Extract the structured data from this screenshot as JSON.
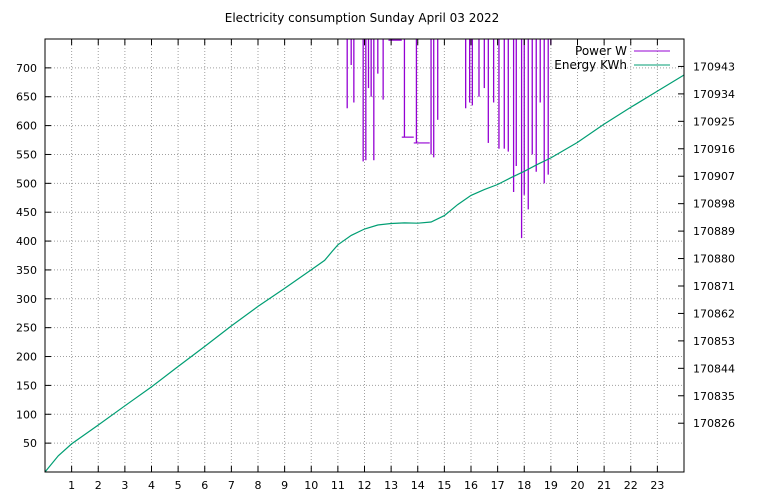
{
  "chart_data": {
    "type": "line",
    "title": "Electricity consumption Sunday April 03 2022",
    "x_ticks": [
      1,
      2,
      3,
      4,
      5,
      6,
      7,
      8,
      9,
      10,
      11,
      12,
      13,
      14,
      15,
      16,
      17,
      18,
      19,
      20,
      21,
      22,
      23
    ],
    "xlim": [
      0,
      24
    ],
    "y_left_ticks": [
      50,
      100,
      150,
      200,
      250,
      300,
      350,
      400,
      450,
      500,
      550,
      600,
      650,
      700
    ],
    "y_left_lim": [
      0,
      750
    ],
    "y_right_ticks": [
      170826,
      170835,
      170844,
      170853,
      170862,
      170871,
      170880,
      170889,
      170898,
      170907,
      170916,
      170925,
      170934,
      170943
    ],
    "y_right_lim": [
      170810,
      170952
    ],
    "grid": true,
    "legend_position": "top-right",
    "colors": {
      "power": "#9400d3",
      "energy": "#009e73"
    },
    "series": [
      {
        "name": "Power W",
        "axis": "left",
        "style": "spikes",
        "base": 750,
        "spikes": [
          [
            11.35,
            630
          ],
          [
            11.5,
            705
          ],
          [
            11.6,
            640
          ],
          [
            11.95,
            538
          ],
          [
            12.05,
            540
          ],
          [
            12.15,
            665
          ],
          [
            12.25,
            650
          ],
          [
            12.35,
            540
          ],
          [
            12.5,
            690
          ],
          [
            12.7,
            645
          ],
          [
            13.05,
            748
          ],
          [
            13.5,
            580
          ],
          [
            13.95,
            570
          ],
          [
            14.5,
            550
          ],
          [
            14.6,
            545
          ],
          [
            14.75,
            610
          ],
          [
            15.8,
            630
          ],
          [
            15.95,
            640
          ],
          [
            16.05,
            635
          ],
          [
            16.3,
            650
          ],
          [
            16.5,
            665
          ],
          [
            16.65,
            570
          ],
          [
            16.85,
            640
          ],
          [
            17.05,
            560
          ],
          [
            17.25,
            560
          ],
          [
            17.4,
            555
          ],
          [
            17.6,
            485
          ],
          [
            17.7,
            530
          ],
          [
            17.9,
            405
          ],
          [
            18.0,
            480
          ],
          [
            18.15,
            455
          ],
          [
            18.3,
            550
          ],
          [
            18.45,
            520
          ],
          [
            18.6,
            640
          ],
          [
            18.75,
            500
          ],
          [
            18.9,
            515
          ],
          [
            19.0,
            740
          ]
        ],
        "flat_segments": [
          [
            12.9,
            13.4,
            748
          ],
          [
            13.4,
            13.85,
            580
          ],
          [
            13.85,
            14.45,
            570
          ]
        ]
      },
      {
        "name": "Energy KWh",
        "axis": "right",
        "style": "line",
        "x": [
          0,
          0.5,
          1,
          2,
          3,
          4,
          5,
          6,
          7,
          8,
          9,
          10,
          10.5,
          10.8,
          11,
          11.5,
          12,
          12.5,
          13,
          13.5,
          14,
          14.5,
          15,
          15.5,
          16,
          16.5,
          17,
          17.5,
          18,
          18.5,
          19,
          20,
          21,
          22,
          23,
          24
        ],
        "y": [
          170810,
          170815.3,
          170819.2,
          170825.4,
          170831.7,
          170837.9,
          170844.6,
          170851.2,
          170857.9,
          170864.3,
          170870.2,
          170876.3,
          170879.4,
          170882.5,
          170884.5,
          170887.6,
          170889.7,
          170891.0,
          170891.5,
          170891.7,
          170891.6,
          170892.0,
          170894.1,
          170897.7,
          170900.7,
          170902.6,
          170904.3,
          170906.5,
          170908.6,
          170910.9,
          170913.0,
          170918.1,
          170924.1,
          170929.6,
          170934.9,
          170940.2
        ]
      }
    ]
  }
}
